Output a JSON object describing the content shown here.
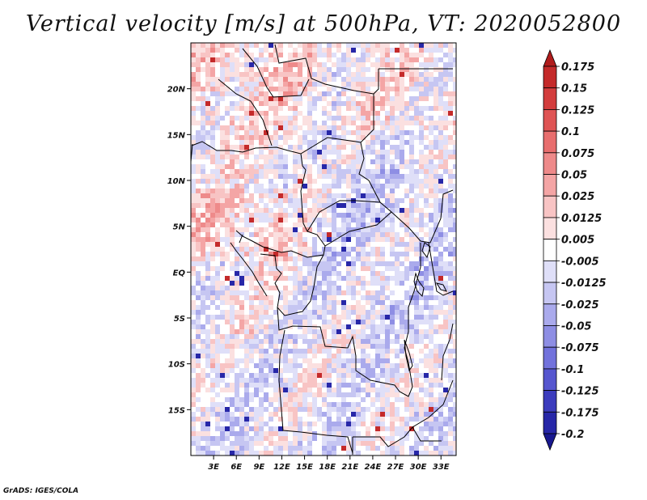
{
  "title": "Vertical velocity [m/s] at 500hPa, VT: 2020052800",
  "footer": "GrADS: IGES/COLA",
  "map": {
    "lon_range": [
      0,
      35
    ],
    "lat_range": [
      -20,
      25
    ],
    "lon_ticks": [
      "3E",
      "6E",
      "9E",
      "12E",
      "15E",
      "18E",
      "21E",
      "24E",
      "27E",
      "30E",
      "33E"
    ],
    "lon_tick_values": [
      3,
      6,
      9,
      12,
      15,
      18,
      21,
      24,
      27,
      30,
      33
    ],
    "lat_ticks": [
      "20N",
      "15N",
      "10N",
      "5N",
      "EQ",
      "5S",
      "10S",
      "15S"
    ],
    "lat_tick_values": [
      20,
      15,
      10,
      5,
      0,
      -5,
      -10,
      -15
    ]
  },
  "colorbar": {
    "labels": [
      "0.175",
      "0.15",
      "0.125",
      "0.1",
      "0.075",
      "0.05",
      "0.025",
      "0.0125",
      "0.005",
      "-0.005",
      "-0.0125",
      "-0.025",
      "-0.05",
      "-0.075",
      "-0.1",
      "-0.125",
      "-0.175",
      "-0.2"
    ],
    "colors": [
      "#b01c1c",
      "#c42a2a",
      "#d33d3d",
      "#df5454",
      "#e86e6e",
      "#ee8a8a",
      "#f4a5a5",
      "#f8c4c4",
      "#fbe0e0",
      "#ffffff",
      "#dfdff8",
      "#c6c6f2",
      "#aaaaec",
      "#8e8ee4",
      "#7272dc",
      "#5656cf",
      "#3c3cbd",
      "#2727a8",
      "#18188f"
    ]
  }
}
